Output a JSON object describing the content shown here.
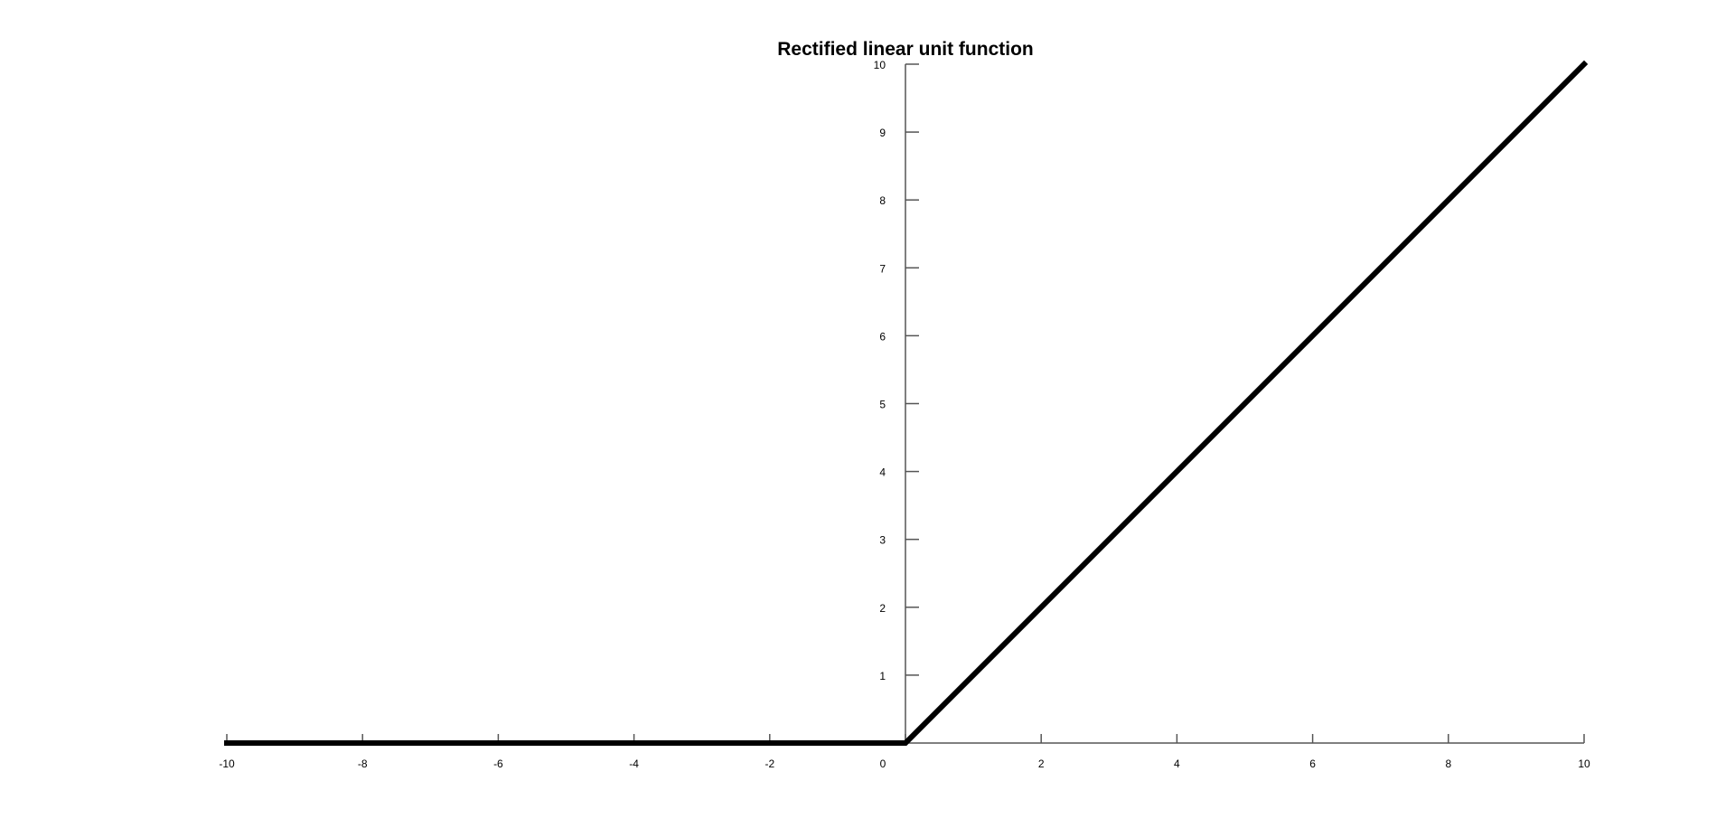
{
  "chart_data": {
    "type": "line",
    "title": "Rectified linear unit function",
    "xlabel": "",
    "ylabel": "",
    "xlim": [
      -10,
      10
    ],
    "ylim": [
      0,
      10
    ],
    "x_ticks": [
      -10,
      -8,
      -6,
      -4,
      -2,
      0,
      2,
      4,
      6,
      8,
      10
    ],
    "y_ticks": [
      1,
      2,
      3,
      4,
      5,
      6,
      7,
      8,
      9,
      10
    ],
    "x_tick_labels": [
      "-10",
      "-8",
      "-6",
      "-4",
      "-2",
      "0",
      "2",
      "4",
      "6",
      "8",
      "10"
    ],
    "y_tick_labels": [
      "1",
      "2",
      "3",
      "4",
      "5",
      "6",
      "7",
      "8",
      "9",
      "10"
    ],
    "grid": false,
    "legend": "none",
    "series": [
      {
        "x": [
          -10,
          0,
          10
        ],
        "y": [
          0,
          0,
          10
        ],
        "color": "#000000"
      }
    ]
  }
}
